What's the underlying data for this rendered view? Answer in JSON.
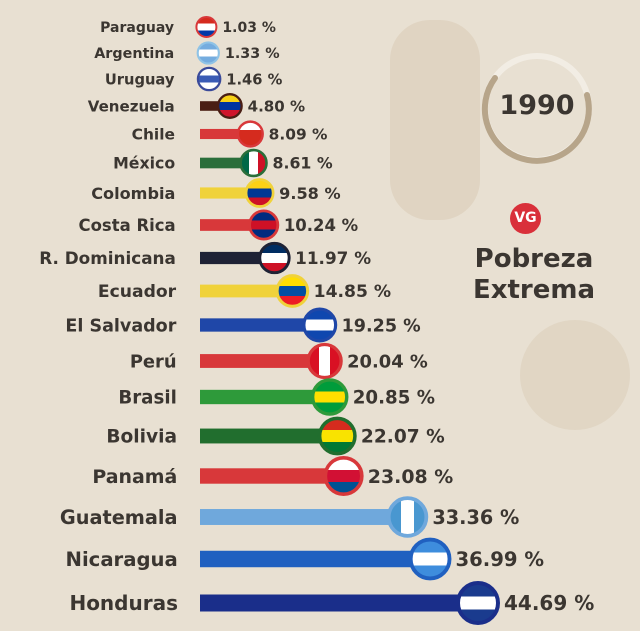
{
  "chart_data": {
    "type": "bar",
    "orientation": "horizontal",
    "title": "Pobreza Extrema",
    "year": "1990",
    "logo": "VG",
    "unit": "%",
    "xlim": [
      0,
      45
    ],
    "grid": false,
    "categories": [
      "Paraguay",
      "Argentina",
      "Uruguay",
      "Venezuela",
      "Chile",
      "México",
      "Colombia",
      "Costa Rica",
      "R. Dominicana",
      "Ecuador",
      "El Salvador",
      "Perú",
      "Brasil",
      "Bolivia",
      "Panamá",
      "Guatemala",
      "Nicaragua",
      "Honduras"
    ],
    "values": [
      1.03,
      1.33,
      1.46,
      4.8,
      8.09,
      8.61,
      9.58,
      10.24,
      11.97,
      14.85,
      19.25,
      20.04,
      20.85,
      22.07,
      23.08,
      33.36,
      36.99,
      44.69
    ],
    "value_labels": [
      "1.03 %",
      "1.33 %",
      "1.46 %",
      "4.80 %",
      "8.09 %",
      "8.61 %",
      "9.58 %",
      "10.24 %",
      "11.97 %",
      "14.85 %",
      "19.25 %",
      "20.04 %",
      "20.85 %",
      "22.07 %",
      "23.08 %",
      "33.36 %",
      "36.99 %",
      "44.69 %"
    ],
    "bar_colors": [
      "#d8383a",
      "#8fc3e6",
      "#3a4a9a",
      "#4a1e14",
      "#d8383a",
      "#2a6e3a",
      "#f0d23a",
      "#d8383a",
      "#1e2235",
      "#f0d23a",
      "#1f47a8",
      "#d8383a",
      "#2e9a3a",
      "#216e2e",
      "#d8383a",
      "#6fa8dc",
      "#2060c0",
      "#1a2e8a"
    ],
    "flags": [
      [
        "#d52b1e",
        "#ffffff",
        "#0038a8"
      ],
      [
        "#74acdf",
        "#ffffff",
        "#74acdf"
      ],
      [
        "#ffffff",
        "#3a5bb5",
        "#ffffff"
      ],
      [
        "#f7d117",
        "#0033a0",
        "#cf142b"
      ],
      [
        "#ffffff",
        "#d52b1e",
        "#d52b1e"
      ],
      [
        "#006847",
        "#ffffff",
        "#ce1126"
      ],
      [
        "#fcd116",
        "#003893",
        "#ce1126"
      ],
      [
        "#002b7f",
        "#ce1126",
        "#002b7f"
      ],
      [
        "#002d62",
        "#ffffff",
        "#ce1126"
      ],
      [
        "#ffdd00",
        "#034ea2",
        "#ed1c24"
      ],
      [
        "#0f47af",
        "#ffffff",
        "#0f47af"
      ],
      [
        "#d91023",
        "#ffffff",
        "#d91023"
      ],
      [
        "#009c3b",
        "#ffdf00",
        "#009c3b"
      ],
      [
        "#d52b1e",
        "#f9e300",
        "#007934"
      ],
      [
        "#ffffff",
        "#d21034",
        "#005293"
      ],
      [
        "#4997d0",
        "#ffffff",
        "#4997d0"
      ],
      [
        "#3e8ddd",
        "#ffffff",
        "#3e8ddd"
      ],
      [
        "#1a3b8e",
        "#ffffff",
        "#1a3b8e"
      ]
    ],
    "flag_stripes": [
      "h",
      "h",
      "h",
      "h",
      "h",
      "v",
      "h",
      "h",
      "h",
      "h",
      "h",
      "v",
      "h",
      "h",
      "h",
      "v",
      "h",
      "h"
    ]
  },
  "header": {
    "year": "1990",
    "logo": "VG",
    "title_line1": "Pobreza",
    "title_line2": "Extrema"
  }
}
